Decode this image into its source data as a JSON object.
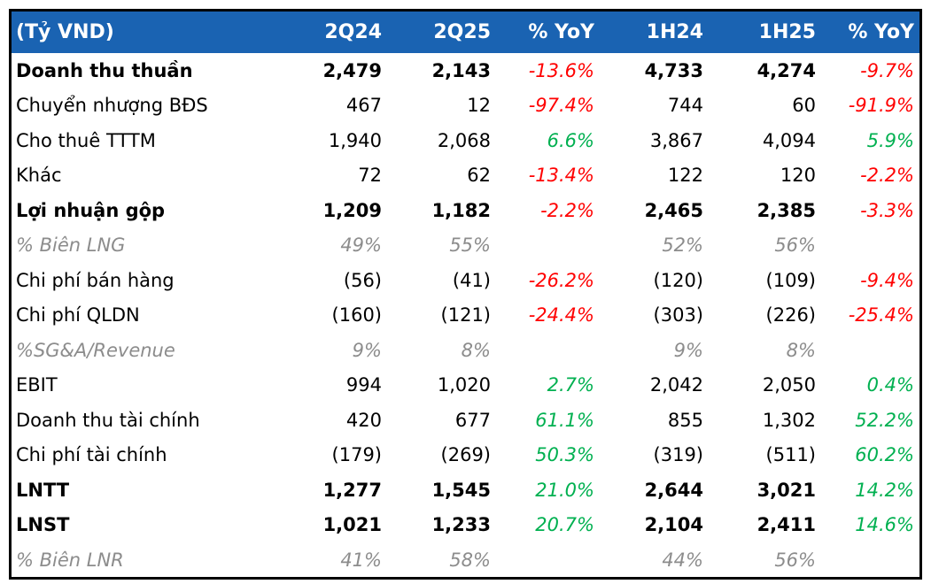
{
  "table": {
    "unit_label": "(Tỷ VND)",
    "columns": [
      "2Q24",
      "2Q25",
      "% YoY",
      "1H24",
      "1H25",
      "% YoY"
    ],
    "rows": [
      {
        "label": "Doanh thu thuần",
        "style": "bold",
        "values": [
          "2,479",
          "2,143",
          "-13.6%",
          "4,733",
          "4,274",
          "-9.7%"
        ]
      },
      {
        "label": "Chuyển nhượng BĐS",
        "style": "normal",
        "values": [
          "467",
          "12",
          "-97.4%",
          "744",
          "60",
          "-91.9%"
        ]
      },
      {
        "label": "Cho thuê TTTM",
        "style": "normal",
        "values": [
          "1,940",
          "2,068",
          "6.6%",
          "3,867",
          "4,094",
          "5.9%"
        ]
      },
      {
        "label": "Khác",
        "style": "normal",
        "values": [
          "72",
          "62",
          "-13.4%",
          "122",
          "120",
          "-2.2%"
        ]
      },
      {
        "label": "Lợi nhuận gộp",
        "style": "bold",
        "values": [
          "1,209",
          "1,182",
          "-2.2%",
          "2,465",
          "2,385",
          "-3.3%"
        ]
      },
      {
        "label": "% Biên LNG",
        "style": "muted",
        "values": [
          "49%",
          "55%",
          "",
          "52%",
          "56%",
          ""
        ]
      },
      {
        "label": "Chi phí bán hàng",
        "style": "normal",
        "values": [
          "(56)",
          "(41)",
          "-26.2%",
          "(120)",
          "(109)",
          "-9.4%"
        ]
      },
      {
        "label": "Chi phí QLDN",
        "style": "normal",
        "values": [
          "(160)",
          "(121)",
          "-24.4%",
          "(303)",
          "(226)",
          "-25.4%"
        ]
      },
      {
        "label": "%SG&A/Revenue",
        "style": "muted",
        "values": [
          "9%",
          "8%",
          "",
          "9%",
          "8%",
          ""
        ]
      },
      {
        "label": "EBIT",
        "style": "normal",
        "values": [
          "994",
          "1,020",
          "2.7%",
          "2,042",
          "2,050",
          "0.4%"
        ]
      },
      {
        "label": "Doanh thu tài chính",
        "style": "normal",
        "values": [
          "420",
          "677",
          "61.1%",
          "855",
          "1,302",
          "52.2%"
        ]
      },
      {
        "label": "Chi phí tài chính",
        "style": "normal",
        "values": [
          "(179)",
          "(269)",
          "50.3%",
          "(319)",
          "(511)",
          "60.2%"
        ]
      },
      {
        "label": "LNTT",
        "style": "bold",
        "values": [
          "1,277",
          "1,545",
          "21.0%",
          "2,644",
          "3,021",
          "14.2%"
        ]
      },
      {
        "label": "LNST",
        "style": "bold",
        "values": [
          "1,021",
          "1,233",
          "20.7%",
          "2,104",
          "2,411",
          "14.6%"
        ]
      },
      {
        "label": "% Biên LNR",
        "style": "muted",
        "values": [
          "41%",
          "58%",
          "",
          "44%",
          "56%",
          ""
        ]
      }
    ],
    "colors": {
      "header_bg": "#1A63B2",
      "header_text": "#FFFFFF",
      "positive": "#00B050",
      "negative": "#FF0000",
      "muted": "#8C8C8C",
      "text": "#000000",
      "border": "#000000"
    }
  }
}
